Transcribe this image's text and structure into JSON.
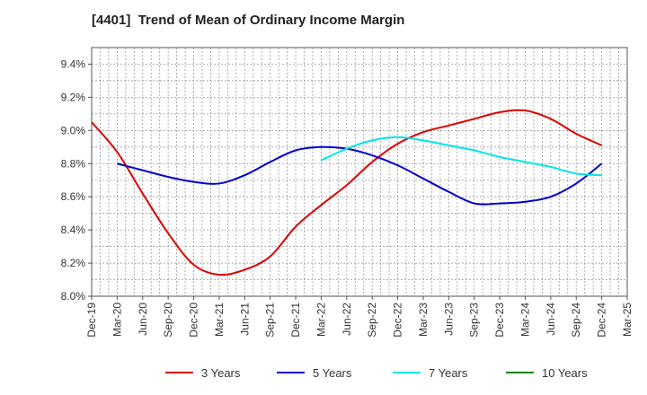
{
  "chart_data": {
    "type": "line",
    "title": "[4401]  Trend of Mean of Ordinary Income Margin",
    "xlabel": "",
    "ylabel": "",
    "x": [
      "Dec-19",
      "Mar-20",
      "Jun-20",
      "Sep-20",
      "Dec-20",
      "Mar-21",
      "Jun-21",
      "Sep-21",
      "Dec-21",
      "Mar-22",
      "Jun-22",
      "Sep-22",
      "Dec-22",
      "Mar-23",
      "Jun-23",
      "Sep-23",
      "Dec-23",
      "Mar-24",
      "Jun-24",
      "Sep-24",
      "Dec-24",
      "Mar-25"
    ],
    "ylim": [
      8.0,
      9.5
    ],
    "yticks": [
      "8.0%",
      "8.2%",
      "8.4%",
      "8.6%",
      "8.8%",
      "9.0%",
      "9.2%",
      "9.4%"
    ],
    "grid": true,
    "legend_position": "bottom",
    "series": [
      {
        "name": "3 Years",
        "color": "#dd0000",
        "values": [
          9.05,
          8.87,
          8.62,
          8.38,
          8.19,
          8.13,
          8.16,
          8.24,
          8.42,
          8.55,
          8.67,
          8.81,
          8.92,
          8.99,
          9.03,
          9.07,
          9.11,
          9.12,
          9.07,
          8.98,
          8.91,
          null
        ]
      },
      {
        "name": "5 Years",
        "color": "#0000cc",
        "values": [
          null,
          8.8,
          8.76,
          8.72,
          8.69,
          8.68,
          8.73,
          8.81,
          8.88,
          8.9,
          8.89,
          8.85,
          8.79,
          8.71,
          8.63,
          8.56,
          8.56,
          8.57,
          8.6,
          8.68,
          8.8,
          null
        ]
      },
      {
        "name": "7 Years",
        "color": "#00e5e5",
        "values": [
          null,
          null,
          null,
          null,
          null,
          null,
          null,
          null,
          null,
          8.82,
          8.89,
          8.94,
          8.96,
          8.94,
          8.91,
          8.88,
          8.84,
          8.81,
          8.78,
          8.74,
          8.73,
          null
        ]
      },
      {
        "name": "10 Years",
        "color": "#008800",
        "values": [
          null,
          null,
          null,
          null,
          null,
          null,
          null,
          null,
          null,
          null,
          null,
          null,
          null,
          null,
          null,
          null,
          null,
          null,
          null,
          null,
          null,
          null
        ]
      }
    ]
  }
}
